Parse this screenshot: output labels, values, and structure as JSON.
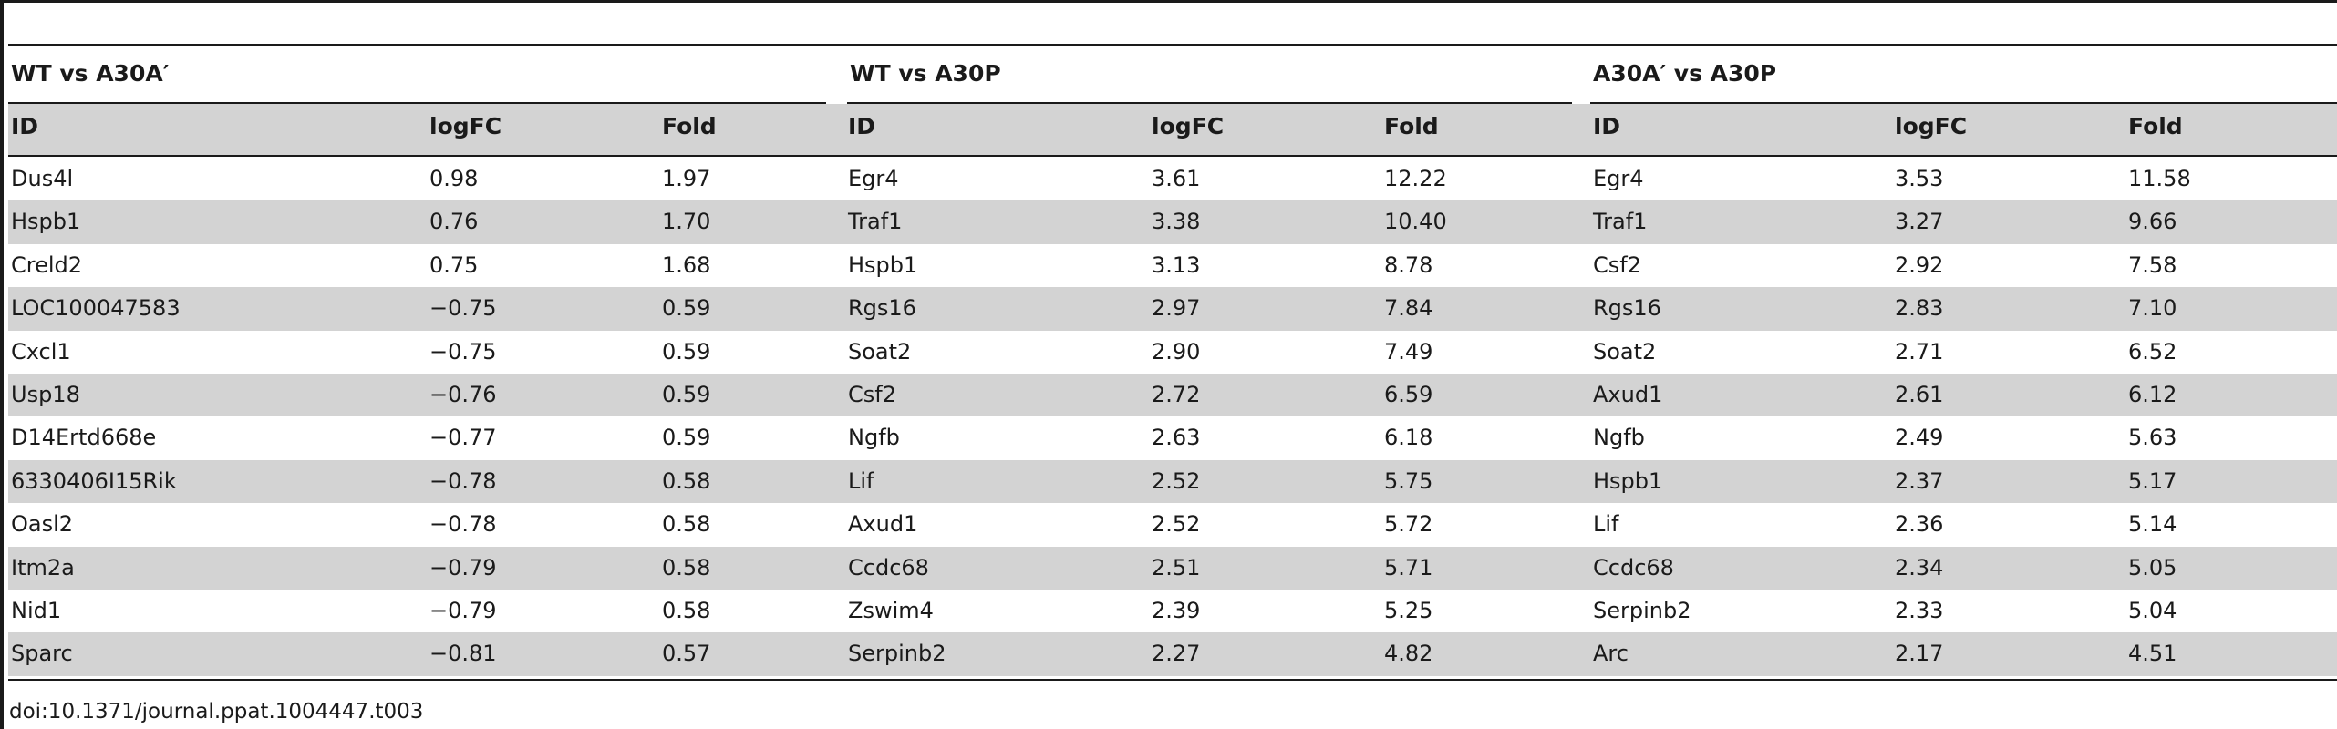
{
  "table": {
    "groups": [
      {
        "title": "WT vs A30A′"
      },
      {
        "title": "WT vs A30P"
      },
      {
        "title": "A30A′ vs A30P"
      }
    ],
    "column_headers": {
      "id": "ID",
      "logfc": "logFC",
      "fold": "Fold"
    },
    "rows": [
      {
        "g1": {
          "id": "Dus4l",
          "logfc": "0.98",
          "fold": "1.97"
        },
        "g2": {
          "id": "Egr4",
          "logfc": "3.61",
          "fold": "12.22"
        },
        "g3": {
          "id": "Egr4",
          "logfc": "3.53",
          "fold": "11.58"
        }
      },
      {
        "g1": {
          "id": "Hspb1",
          "logfc": "0.76",
          "fold": "1.70"
        },
        "g2": {
          "id": "Traf1",
          "logfc": "3.38",
          "fold": "10.40"
        },
        "g3": {
          "id": "Traf1",
          "logfc": "3.27",
          "fold": "9.66"
        }
      },
      {
        "g1": {
          "id": "Creld2",
          "logfc": "0.75",
          "fold": "1.68"
        },
        "g2": {
          "id": "Hspb1",
          "logfc": "3.13",
          "fold": "8.78"
        },
        "g3": {
          "id": "Csf2",
          "logfc": "2.92",
          "fold": "7.58"
        }
      },
      {
        "g1": {
          "id": "LOC100047583",
          "logfc": "−0.75",
          "fold": "0.59"
        },
        "g2": {
          "id": "Rgs16",
          "logfc": "2.97",
          "fold": "7.84"
        },
        "g3": {
          "id": "Rgs16",
          "logfc": "2.83",
          "fold": "7.10"
        }
      },
      {
        "g1": {
          "id": "Cxcl1",
          "logfc": "−0.75",
          "fold": "0.59"
        },
        "g2": {
          "id": "Soat2",
          "logfc": "2.90",
          "fold": "7.49"
        },
        "g3": {
          "id": "Soat2",
          "logfc": "2.71",
          "fold": "6.52"
        }
      },
      {
        "g1": {
          "id": "Usp18",
          "logfc": "−0.76",
          "fold": "0.59"
        },
        "g2": {
          "id": "Csf2",
          "logfc": "2.72",
          "fold": "6.59"
        },
        "g3": {
          "id": "Axud1",
          "logfc": "2.61",
          "fold": "6.12"
        }
      },
      {
        "g1": {
          "id": "D14Ertd668e",
          "logfc": "−0.77",
          "fold": "0.59"
        },
        "g2": {
          "id": "Ngfb",
          "logfc": "2.63",
          "fold": "6.18"
        },
        "g3": {
          "id": "Ngfb",
          "logfc": "2.49",
          "fold": "5.63"
        }
      },
      {
        "g1": {
          "id": "6330406I15Rik",
          "logfc": "−0.78",
          "fold": "0.58"
        },
        "g2": {
          "id": "Lif",
          "logfc": "2.52",
          "fold": "5.75"
        },
        "g3": {
          "id": "Hspb1",
          "logfc": "2.37",
          "fold": "5.17"
        }
      },
      {
        "g1": {
          "id": "Oasl2",
          "logfc": "−0.78",
          "fold": "0.58"
        },
        "g2": {
          "id": "Axud1",
          "logfc": "2.52",
          "fold": "5.72"
        },
        "g3": {
          "id": "Lif",
          "logfc": "2.36",
          "fold": "5.14"
        }
      },
      {
        "g1": {
          "id": "Itm2a",
          "logfc": "−0.79",
          "fold": "0.58"
        },
        "g2": {
          "id": "Ccdc68",
          "logfc": "2.51",
          "fold": "5.71"
        },
        "g3": {
          "id": "Ccdc68",
          "logfc": "2.34",
          "fold": "5.05"
        }
      },
      {
        "g1": {
          "id": "Nid1",
          "logfc": "−0.79",
          "fold": "0.58"
        },
        "g2": {
          "id": "Zswim4",
          "logfc": "2.39",
          "fold": "5.25"
        },
        "g3": {
          "id": "Serpinb2",
          "logfc": "2.33",
          "fold": "5.04"
        }
      },
      {
        "g1": {
          "id": "Sparc",
          "logfc": "−0.81",
          "fold": "0.57"
        },
        "g2": {
          "id": "Serpinb2",
          "logfc": "2.27",
          "fold": "4.82"
        },
        "g3": {
          "id": "Arc",
          "logfc": "2.17",
          "fold": "4.51"
        }
      }
    ]
  },
  "footer": {
    "doi": "doi:10.1371/journal.ppat.1004447.t003"
  },
  "colors": {
    "row_shade": "#d3d3d3",
    "rule": "#1a1a1a",
    "text": "#1a1a1a"
  }
}
